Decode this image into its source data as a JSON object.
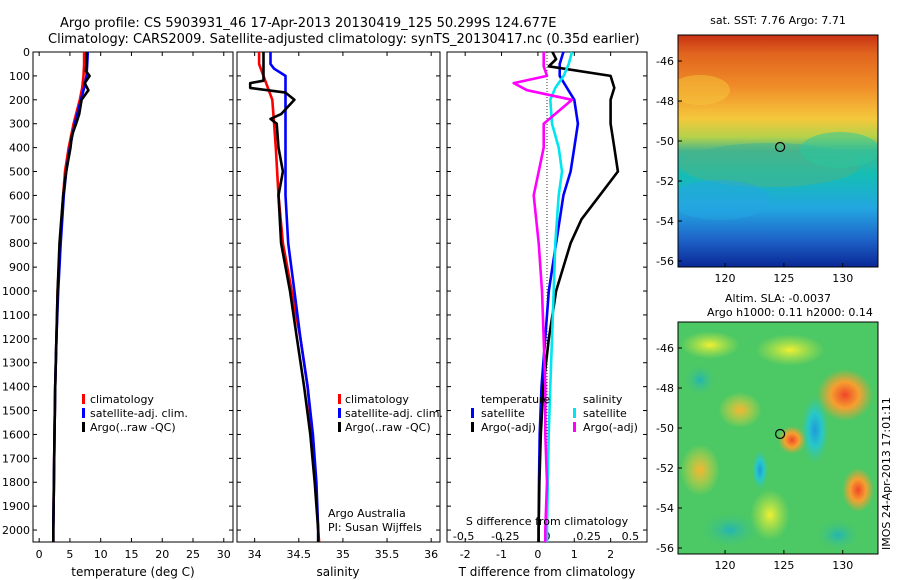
{
  "header": {
    "line1": "Argo profile: CS 5903931_46 17-Apr-2013 20130419_125 50.299S 124.677E",
    "line2": "Climatology: CARS2009. Satellite-adjusted climatology: synTS_20130417.nc (0.35d earlier)"
  },
  "colors": {
    "climatology": "#ff0000",
    "satellite": "#0000ff",
    "argo": "#000000",
    "sat_diff": "#00e5ee",
    "argo_adj_s": "#ff00ff"
  },
  "credit": {
    "line1": "Argo Australia",
    "line2": "PI: Susan Wijffels"
  },
  "watermark": "IMOS 24-Apr-2013 17:01:11",
  "chart_data": [
    {
      "type": "line",
      "xlabel": "temperature (deg C)",
      "ylabel": "",
      "xlim": [
        -1,
        31.5
      ],
      "ylim": [
        2050,
        0
      ],
      "xticks": [
        0,
        5,
        10,
        15,
        20,
        25,
        30
      ],
      "yticks": [
        0,
        100,
        200,
        300,
        400,
        500,
        600,
        700,
        800,
        900,
        1000,
        1100,
        1200,
        1300,
        1400,
        1500,
        1600,
        1700,
        1800,
        1900,
        2000
      ],
      "legend": {
        "placement": "bottom-left",
        "entries": [
          "climatology",
          "satellite-adj. clim.",
          "Argo(..raw -QC)"
        ]
      },
      "series": [
        {
          "name": "climatology",
          "color": "#ff0000",
          "depth": [
            0,
            50,
            100,
            150,
            200,
            300,
            400,
            500,
            600,
            800,
            1000,
            1200,
            1400,
            1600,
            1800,
            2000,
            2050
          ],
          "values": [
            7.3,
            7.3,
            7.2,
            7.0,
            6.6,
            5.6,
            4.8,
            4.2,
            3.9,
            3.4,
            3.0,
            2.8,
            2.6,
            2.5,
            2.4,
            2.3,
            2.3
          ]
        },
        {
          "name": "satellite-adj. clim.",
          "color": "#0000ff",
          "depth": [
            0,
            50,
            100,
            150,
            200,
            300,
            400,
            500,
            600,
            800,
            1000,
            1200,
            1400,
            1600,
            1800,
            2000,
            2050
          ],
          "values": [
            7.9,
            7.8,
            7.7,
            7.3,
            6.8,
            5.8,
            5.0,
            4.4,
            4.0,
            3.5,
            3.1,
            2.8,
            2.6,
            2.5,
            2.4,
            2.3,
            2.3
          ]
        },
        {
          "name": "Argo(..raw -QC)",
          "color": "#000000",
          "depth": [
            0,
            50,
            80,
            100,
            130,
            160,
            200,
            260,
            300,
            350,
            400,
            500,
            600,
            700,
            800,
            1000,
            1200,
            1400,
            1600,
            1800,
            2000,
            2050
          ],
          "values": [
            7.7,
            7.7,
            7.6,
            8.2,
            7.4,
            8.0,
            6.9,
            6.5,
            6.0,
            5.3,
            5.1,
            4.4,
            3.9,
            3.6,
            3.3,
            3.0,
            2.8,
            2.6,
            2.5,
            2.4,
            2.3,
            2.3
          ]
        }
      ]
    },
    {
      "type": "line",
      "xlabel": "salinity",
      "ylabel": "",
      "xlim": [
        33.8,
        36.1
      ],
      "ylim": [
        2050,
        0
      ],
      "xticks": [
        34,
        34.5,
        35,
        35.5,
        36
      ],
      "xticklabels": [
        "34",
        "34.5",
        "35",
        "35.5",
        "36"
      ],
      "legend": {
        "placement": "bottom-right",
        "entries": [
          "climatology",
          "satellite-adj. clim.",
          "Argo(..raw -QC)"
        ]
      },
      "series": [
        {
          "name": "climatology",
          "color": "#ff0000",
          "depth": [
            0,
            50,
            100,
            150,
            200,
            300,
            400,
            600,
            800,
            1000,
            1200,
            1400,
            1600,
            1800,
            2000,
            2050
          ],
          "values": [
            34.05,
            34.05,
            34.1,
            34.15,
            34.2,
            34.22,
            34.24,
            34.27,
            34.32,
            34.42,
            34.52,
            34.6,
            34.65,
            34.69,
            34.72,
            34.73
          ]
        },
        {
          "name": "satellite-adj. clim.",
          "color": "#0000ff",
          "depth": [
            0,
            50,
            70,
            100,
            150,
            200,
            300,
            400,
            600,
            800,
            1000,
            1200,
            1400,
            1600,
            1800,
            2000,
            2050
          ],
          "values": [
            34.18,
            34.18,
            34.22,
            34.35,
            34.35,
            34.35,
            34.35,
            34.35,
            34.35,
            34.38,
            34.45,
            34.52,
            34.6,
            34.66,
            34.7,
            34.72,
            34.72
          ]
        },
        {
          "name": "Argo(..raw -QC)",
          "color": "#000000",
          "depth": [
            0,
            60,
            120,
            130,
            150,
            170,
            200,
            260,
            280,
            300,
            400,
            500,
            600,
            800,
            1000,
            1200,
            1400,
            1600,
            1800,
            2000,
            2050
          ],
          "values": [
            34.1,
            34.1,
            34.1,
            33.95,
            33.95,
            34.35,
            34.45,
            34.3,
            34.18,
            34.25,
            34.27,
            34.32,
            34.27,
            34.3,
            34.4,
            34.48,
            34.56,
            34.63,
            34.68,
            34.72,
            34.72
          ]
        }
      ]
    },
    {
      "type": "line",
      "xlabel": "T difference from climatology",
      "x2label": "S difference from climatology",
      "xlim": [
        -2.5,
        3.0
      ],
      "ylim": [
        2050,
        0
      ],
      "xticks": [
        -2,
        -1,
        0,
        1,
        2
      ],
      "x2ticks": [
        -0.5,
        -0.25,
        0,
        0.25,
        0.5
      ],
      "x2ticklabels": [
        "-0.5",
        "-0.25",
        "0",
        "0.25",
        "0.5"
      ],
      "legend": {
        "placement": "bottom",
        "temperature": [
          "temperature",
          "satellite",
          "Argo(-adj)"
        ],
        "salinity": [
          "salinity",
          "satellite",
          "Argo(-adj)"
        ]
      },
      "series": [
        {
          "name": "temperature satellite",
          "color": "#0000ff",
          "depth": [
            0,
            50,
            100,
            150,
            200,
            300,
            400,
            500,
            600,
            800,
            1000,
            1200,
            1400,
            1600,
            1800,
            2000,
            2050
          ],
          "values": [
            0.7,
            0.6,
            0.6,
            0.8,
            1.0,
            1.1,
            1.0,
            0.9,
            0.7,
            0.5,
            0.3,
            0.2,
            0.1,
            0.05,
            0.03,
            0.02,
            0.02
          ]
        },
        {
          "name": "temperature Argo(-adj)",
          "color": "#000000",
          "depth": [
            0,
            30,
            60,
            100,
            150,
            200,
            300,
            400,
            500,
            600,
            700,
            800,
            1000,
            1200,
            1400,
            1600,
            1800,
            2000,
            2050
          ],
          "values": [
            0.4,
            0.5,
            0.3,
            2.0,
            2.1,
            2.0,
            2.0,
            2.1,
            2.2,
            1.7,
            1.2,
            0.9,
            0.5,
            0.3,
            0.15,
            0.08,
            0.04,
            0.02,
            0.02
          ]
        },
        {
          "name": "salinity satellite",
          "color": "#00e5ee",
          "depth": [
            0,
            50,
            100,
            150,
            200,
            300,
            400,
            500,
            600,
            800,
            1000,
            1200,
            1400,
            1600,
            1800,
            2000,
            2050
          ],
          "values": [
            0.15,
            0.13,
            0.1,
            0.05,
            0.02,
            0.03,
            0.07,
            0.09,
            0.07,
            0.05,
            0.04,
            0.03,
            0.02,
            0.01,
            0.005,
            0.0,
            0.0
          ]
        },
        {
          "name": "salinity Argo(-adj)",
          "color": "#ff00ff",
          "depth": [
            0,
            60,
            100,
            130,
            160,
            200,
            300,
            400,
            500,
            600,
            800,
            1000,
            1200,
            1400,
            1600,
            1800,
            2000,
            2050
          ],
          "values": [
            -0.02,
            -0.02,
            0.0,
            -0.2,
            -0.12,
            0.15,
            -0.02,
            -0.02,
            -0.05,
            -0.08,
            -0.05,
            -0.03,
            -0.02,
            -0.01,
            -0.01,
            0.0,
            -0.01,
            -0.01
          ]
        }
      ]
    },
    {
      "type": "heatmap",
      "title": "sat. SST: 7.76 Argo: 7.71",
      "xlim": [
        116,
        133
      ],
      "ylim": [
        -56.3,
        -44.7
      ],
      "xticks": [
        120,
        125,
        130
      ],
      "yticks": [
        -46,
        -48,
        -50,
        -52,
        -54,
        -56
      ],
      "marker": {
        "lon": 124.677,
        "lat": -50.299
      }
    },
    {
      "type": "heatmap",
      "title": "Altim. SLA: -0.0037",
      "subtitle": "Argo h1000: 0.11 h2000: 0.14",
      "xlim": [
        116,
        133
      ],
      "ylim": [
        -56.3,
        -44.7
      ],
      "xticks": [
        120,
        125,
        130
      ],
      "yticks": [
        -46,
        -48,
        -50,
        -52,
        -54,
        -56
      ],
      "marker": {
        "lon": 124.677,
        "lat": -50.299
      }
    }
  ]
}
